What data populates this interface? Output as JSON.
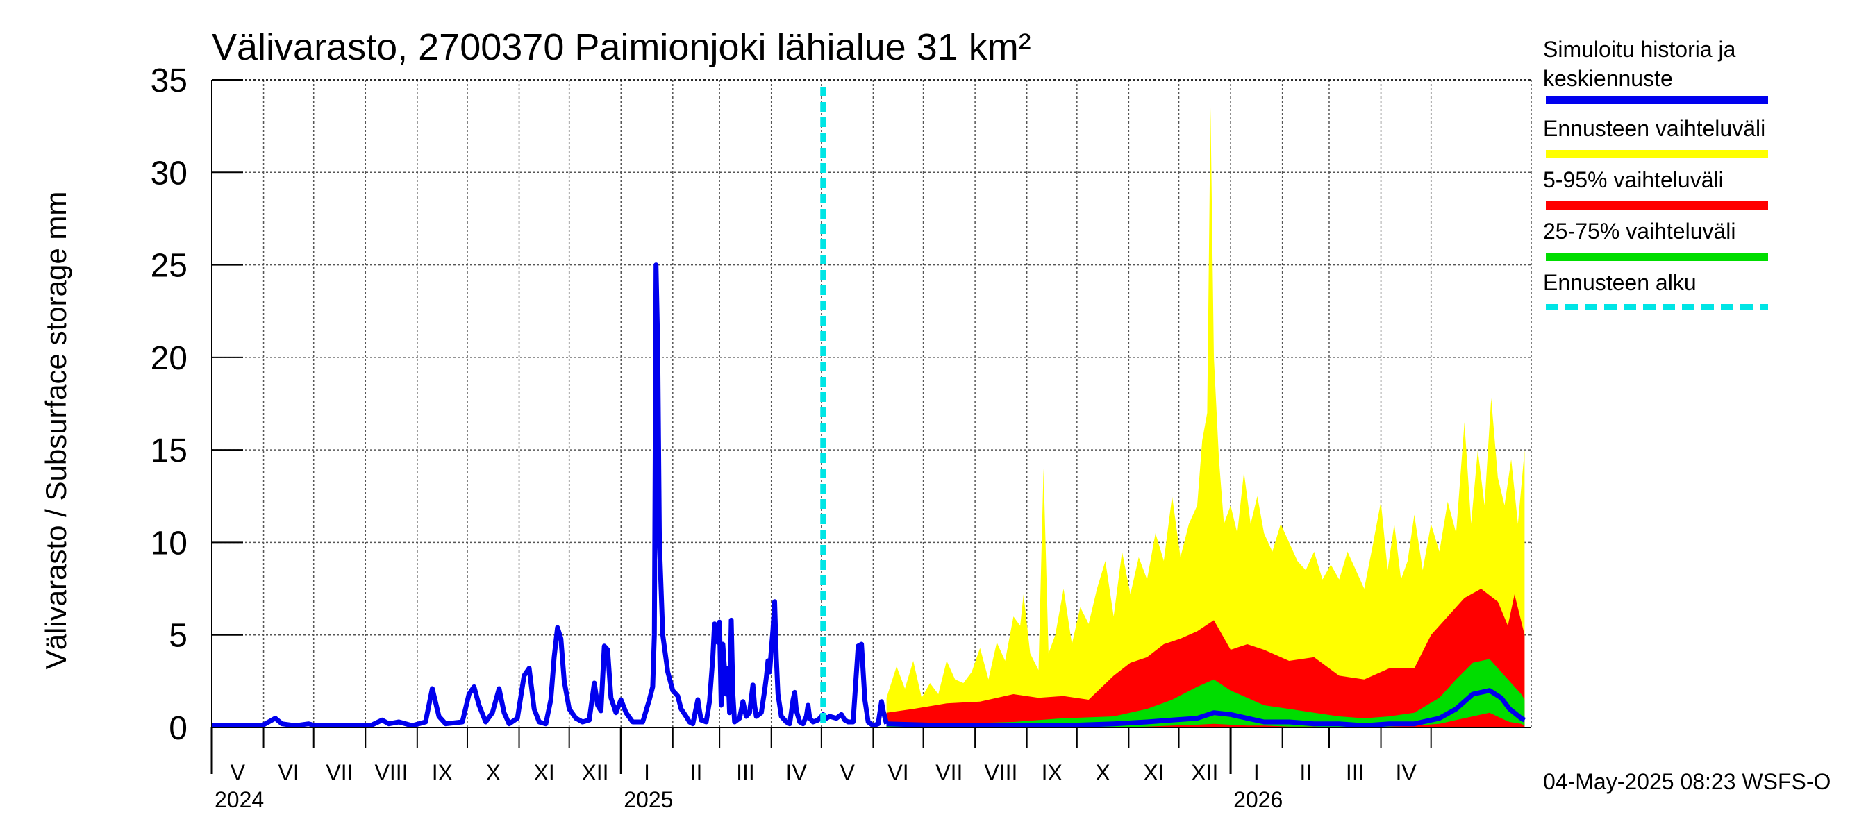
{
  "chart_data": {
    "type": "area",
    "title": "Välivarasto, 2700370 Paimionjoki lähialue 31 km²",
    "ylabel": "Välivarasto / Subsurface storage  mm",
    "xlabel": "",
    "ylim": [
      0,
      35
    ],
    "yticks": [
      "0",
      "5",
      "10",
      "15",
      "20",
      "25",
      "30",
      "35"
    ],
    "month_labels": [
      "V",
      "VI",
      "VII",
      "VIII",
      "IX",
      "X",
      "XI",
      "XII",
      "I",
      "II",
      "III",
      "IV",
      "V",
      "VI",
      "VII",
      "VIII",
      "IX",
      "X",
      "XI",
      "XII",
      "I",
      "II",
      "III",
      "IV"
    ],
    "year_labels": [
      "2024",
      "2025",
      "2026"
    ],
    "grid": true,
    "forecast_start_day": 366,
    "history_mm": [
      [
        0,
        0.1
      ],
      [
        30,
        0.1
      ],
      [
        38,
        0.5
      ],
      [
        42,
        0.2
      ],
      [
        50,
        0.1
      ],
      [
        58,
        0.2
      ],
      [
        62,
        0.1
      ],
      [
        95,
        0.1
      ],
      [
        102,
        0.4
      ],
      [
        106,
        0.2
      ],
      [
        112,
        0.3
      ],
      [
        120,
        0.1
      ],
      [
        128,
        0.3
      ],
      [
        132,
        2.1
      ],
      [
        136,
        0.6
      ],
      [
        140,
        0.2
      ],
      [
        150,
        0.3
      ],
      [
        154,
        1.8
      ],
      [
        157,
        2.2
      ],
      [
        160,
        1.2
      ],
      [
        164,
        0.3
      ],
      [
        168,
        0.8
      ],
      [
        172,
        2.1
      ],
      [
        175,
        0.8
      ],
      [
        178,
        0.2
      ],
      [
        183,
        0.5
      ],
      [
        187,
        2.8
      ],
      [
        190,
        3.2
      ],
      [
        193,
        1.0
      ],
      [
        196,
        0.3
      ],
      [
        200,
        0.2
      ],
      [
        203,
        1.5
      ],
      [
        205,
        3.8
      ],
      [
        207,
        5.4
      ],
      [
        209,
        4.8
      ],
      [
        211,
        2.5
      ],
      [
        214,
        1.0
      ],
      [
        218,
        0.5
      ],
      [
        222,
        0.3
      ],
      [
        226,
        0.4
      ],
      [
        229,
        2.4
      ],
      [
        231,
        1.2
      ],
      [
        233,
        0.9
      ],
      [
        235,
        4.4
      ],
      [
        237,
        4.2
      ],
      [
        239,
        1.6
      ],
      [
        242,
        0.8
      ],
      [
        245,
        1.5
      ],
      [
        248,
        0.8
      ],
      [
        252,
        0.3
      ],
      [
        258,
        0.3
      ],
      [
        262,
        1.5
      ],
      [
        264,
        2.2
      ],
      [
        265,
        5.0
      ],
      [
        266,
        25.0
      ],
      [
        267,
        20.5
      ],
      [
        268,
        10.0
      ],
      [
        270,
        5.0
      ],
      [
        273,
        3.0
      ],
      [
        276,
        2.0
      ],
      [
        279,
        1.7
      ],
      [
        281,
        1.0
      ],
      [
        284,
        0.6
      ],
      [
        286,
        0.3
      ],
      [
        288,
        0.2
      ],
      [
        291,
        1.5
      ],
      [
        292,
        0.9
      ],
      [
        293,
        0.4
      ],
      [
        296,
        0.3
      ],
      [
        298,
        1.4
      ],
      [
        300,
        3.8
      ],
      [
        301,
        5.6
      ],
      [
        303,
        4.6
      ],
      [
        304,
        5.7
      ],
      [
        305,
        1.2
      ],
      [
        306,
        4.5
      ],
      [
        308,
        1.8
      ],
      [
        309,
        3.2
      ],
      [
        310,
        0.8
      ],
      [
        311,
        5.8
      ],
      [
        312,
        1.8
      ],
      [
        313,
        0.3
      ],
      [
        316,
        0.5
      ],
      [
        318,
        1.4
      ],
      [
        320,
        0.6
      ],
      [
        322,
        0.8
      ],
      [
        324,
        2.3
      ],
      [
        325,
        1.2
      ],
      [
        326,
        0.6
      ],
      [
        329,
        0.8
      ],
      [
        331,
        2.0
      ],
      [
        332,
        2.7
      ],
      [
        333,
        3.6
      ],
      [
        334,
        3.0
      ],
      [
        335,
        4.2
      ],
      [
        336,
        5.3
      ],
      [
        337,
        6.8
      ],
      [
        338,
        3.8
      ],
      [
        339,
        1.8
      ],
      [
        341,
        0.6
      ],
      [
        344,
        0.3
      ],
      [
        346,
        0.2
      ],
      [
        348,
        1.5
      ],
      [
        349,
        1.9
      ],
      [
        350,
        0.9
      ],
      [
        352,
        0.3
      ],
      [
        354,
        0.2
      ],
      [
        356,
        0.6
      ],
      [
        357,
        1.2
      ],
      [
        358,
        0.5
      ],
      [
        360,
        0.3
      ],
      [
        363,
        0.4
      ],
      [
        366,
        0.7
      ],
      [
        368,
        0.5
      ],
      [
        370,
        0.6
      ],
      [
        374,
        0.5
      ],
      [
        377,
        0.7
      ],
      [
        379,
        0.4
      ],
      [
        381,
        0.3
      ],
      [
        384,
        0.3
      ],
      [
        387,
        4.4
      ],
      [
        389,
        4.5
      ],
      [
        391,
        1.5
      ],
      [
        393,
        0.3
      ],
      [
        396,
        0.1
      ],
      [
        399,
        0.2
      ],
      [
        400,
        0.8
      ],
      [
        401,
        1.4
      ],
      [
        402,
        0.9
      ],
      [
        404,
        0.2
      ]
    ],
    "median_mm": [
      [
        404,
        0.2
      ],
      [
        440,
        0.1
      ],
      [
        480,
        0.1
      ],
      [
        510,
        0.1
      ],
      [
        540,
        0.2
      ],
      [
        560,
        0.3
      ],
      [
        575,
        0.4
      ],
      [
        590,
        0.5
      ],
      [
        600,
        0.8
      ],
      [
        610,
        0.7
      ],
      [
        620,
        0.5
      ],
      [
        630,
        0.3
      ],
      [
        645,
        0.3
      ],
      [
        660,
        0.2
      ],
      [
        675,
        0.2
      ],
      [
        690,
        0.1
      ],
      [
        705,
        0.2
      ],
      [
        720,
        0.2
      ],
      [
        735,
        0.5
      ],
      [
        745,
        1.0
      ],
      [
        755,
        1.8
      ],
      [
        765,
        2.0
      ],
      [
        772,
        1.6
      ],
      [
        777,
        1.0
      ],
      [
        784,
        0.5
      ],
      [
        786,
        0.4
      ]
    ],
    "band_25_75_mm": [
      [
        404,
        0.0,
        0.3
      ],
      [
        440,
        0.0,
        0.2
      ],
      [
        480,
        0.0,
        0.3
      ],
      [
        510,
        0.0,
        0.5
      ],
      [
        540,
        0.0,
        0.6
      ],
      [
        560,
        0.05,
        1.0
      ],
      [
        575,
        0.1,
        1.5
      ],
      [
        590,
        0.15,
        2.2
      ],
      [
        600,
        0.2,
        2.6
      ],
      [
        610,
        0.15,
        2.0
      ],
      [
        620,
        0.1,
        1.6
      ],
      [
        630,
        0.1,
        1.2
      ],
      [
        645,
        0.05,
        1.0
      ],
      [
        660,
        0.05,
        0.8
      ],
      [
        675,
        0.0,
        0.6
      ],
      [
        690,
        0.0,
        0.5
      ],
      [
        705,
        0.05,
        0.6
      ],
      [
        720,
        0.1,
        0.8
      ],
      [
        735,
        0.2,
        1.6
      ],
      [
        745,
        0.4,
        2.6
      ],
      [
        755,
        0.6,
        3.5
      ],
      [
        765,
        0.8,
        3.7
      ],
      [
        772,
        0.5,
        3.0
      ],
      [
        777,
        0.3,
        2.5
      ],
      [
        784,
        0.2,
        1.8
      ],
      [
        786,
        0.1,
        1.5
      ]
    ],
    "band_5_95_mm": [
      [
        404,
        0.0,
        0.8
      ],
      [
        420,
        0.0,
        1.0
      ],
      [
        440,
        0.0,
        1.3
      ],
      [
        460,
        0.0,
        1.4
      ],
      [
        480,
        0.0,
        1.8
      ],
      [
        495,
        0.0,
        1.6
      ],
      [
        510,
        0.0,
        1.7
      ],
      [
        525,
        0.0,
        1.5
      ],
      [
        540,
        0.0,
        2.8
      ],
      [
        550,
        0.0,
        3.5
      ],
      [
        560,
        0.0,
        3.8
      ],
      [
        570,
        0.0,
        4.5
      ],
      [
        580,
        0.0,
        4.8
      ],
      [
        590,
        0.0,
        5.2
      ],
      [
        600,
        0.0,
        5.8
      ],
      [
        610,
        0.0,
        4.2
      ],
      [
        620,
        0.0,
        4.5
      ],
      [
        630,
        0.0,
        4.2
      ],
      [
        645,
        0.0,
        3.6
      ],
      [
        660,
        0.0,
        3.8
      ],
      [
        675,
        0.0,
        2.8
      ],
      [
        690,
        0.0,
        2.6
      ],
      [
        705,
        0.0,
        3.2
      ],
      [
        720,
        0.0,
        3.2
      ],
      [
        730,
        0.0,
        5.0
      ],
      [
        740,
        0.0,
        6.0
      ],
      [
        750,
        0.0,
        7.0
      ],
      [
        760,
        0.0,
        7.5
      ],
      [
        770,
        0.0,
        6.8
      ],
      [
        776,
        0.0,
        5.5
      ],
      [
        780,
        0.0,
        7.2
      ],
      [
        786,
        0.0,
        5.0
      ]
    ],
    "band_range_mm": [
      [
        404,
        0.0,
        1.6
      ],
      [
        410,
        0.0,
        3.3
      ],
      [
        415,
        0.0,
        2.1
      ],
      [
        420,
        0.0,
        3.6
      ],
      [
        425,
        0.0,
        1.6
      ],
      [
        430,
        0.0,
        2.4
      ],
      [
        435,
        0.0,
        1.8
      ],
      [
        440,
        0.0,
        3.6
      ],
      [
        445,
        0.0,
        2.6
      ],
      [
        450,
        0.0,
        2.4
      ],
      [
        455,
        0.0,
        3.0
      ],
      [
        460,
        0.0,
        4.3
      ],
      [
        465,
        0.0,
        2.6
      ],
      [
        470,
        0.0,
        4.6
      ],
      [
        475,
        0.0,
        3.6
      ],
      [
        480,
        0.0,
        6.0
      ],
      [
        484,
        0.0,
        5.5
      ],
      [
        486,
        0.0,
        7.2
      ],
      [
        490,
        0.0,
        4.0
      ],
      [
        495,
        0.0,
        3.1
      ],
      [
        498,
        0.0,
        14.0
      ],
      [
        501,
        0.0,
        4.0
      ],
      [
        505,
        0.0,
        5.0
      ],
      [
        510,
        0.0,
        7.5
      ],
      [
        515,
        0.0,
        4.5
      ],
      [
        520,
        0.0,
        6.5
      ],
      [
        525,
        0.0,
        5.6
      ],
      [
        530,
        0.0,
        7.5
      ],
      [
        535,
        0.0,
        9.0
      ],
      [
        540,
        0.0,
        6.0
      ],
      [
        545,
        0.0,
        9.5
      ],
      [
        550,
        0.0,
        7.2
      ],
      [
        555,
        0.0,
        9.2
      ],
      [
        560,
        0.0,
        8.0
      ],
      [
        565,
        0.0,
        10.5
      ],
      [
        570,
        0.0,
        9.0
      ],
      [
        575,
        0.0,
        12.5
      ],
      [
        580,
        0.0,
        9.2
      ],
      [
        585,
        0.0,
        11.0
      ],
      [
        590,
        0.0,
        12.0
      ],
      [
        593,
        0.0,
        15.5
      ],
      [
        596,
        0.0,
        17.0
      ],
      [
        598,
        0.0,
        33.5
      ],
      [
        600,
        0.0,
        20.0
      ],
      [
        603,
        0.0,
        14.5
      ],
      [
        606,
        0.0,
        11.0
      ],
      [
        610,
        0.0,
        12.0
      ],
      [
        614,
        0.0,
        10.5
      ],
      [
        618,
        0.0,
        13.8
      ],
      [
        622,
        0.0,
        11.0
      ],
      [
        626,
        0.0,
        12.5
      ],
      [
        630,
        0.0,
        10.5
      ],
      [
        635,
        0.0,
        9.5
      ],
      [
        640,
        0.0,
        11.0
      ],
      [
        645,
        0.0,
        10.0
      ],
      [
        650,
        0.0,
        9.0
      ],
      [
        655,
        0.0,
        8.5
      ],
      [
        660,
        0.0,
        9.5
      ],
      [
        665,
        0.0,
        8.0
      ],
      [
        670,
        0.0,
        8.8
      ],
      [
        675,
        0.0,
        8.0
      ],
      [
        680,
        0.0,
        9.5
      ],
      [
        685,
        0.0,
        8.5
      ],
      [
        690,
        0.0,
        7.5
      ],
      [
        695,
        0.0,
        9.8
      ],
      [
        700,
        0.0,
        12.2
      ],
      [
        704,
        0.0,
        8.5
      ],
      [
        708,
        0.0,
        11.0
      ],
      [
        712,
        0.0,
        8.0
      ],
      [
        716,
        0.0,
        9.0
      ],
      [
        720,
        0.0,
        11.5
      ],
      [
        725,
        0.0,
        8.5
      ],
      [
        730,
        0.0,
        11.0
      ],
      [
        735,
        0.0,
        9.5
      ],
      [
        740,
        0.0,
        12.2
      ],
      [
        745,
        0.0,
        10.5
      ],
      [
        750,
        0.0,
        16.5
      ],
      [
        754,
        0.0,
        11.0
      ],
      [
        758,
        0.0,
        15.0
      ],
      [
        762,
        0.0,
        12.0
      ],
      [
        766,
        0.0,
        17.8
      ],
      [
        770,
        0.0,
        13.5
      ],
      [
        774,
        0.0,
        12.0
      ],
      [
        778,
        0.0,
        14.5
      ],
      [
        782,
        0.0,
        11.0
      ],
      [
        786,
        0.0,
        15.0
      ]
    ],
    "colors": {
      "history": "#0000ee",
      "range": "#ffff00",
      "band_5_95": "#ff0000",
      "band_25_75": "#00dd00",
      "forecast_start": "#00e5e5"
    },
    "legend_position": "right"
  },
  "legend": {
    "history_label": "Simuloitu historia ja keskiennuste",
    "range_label": "Ennusteen vaihteluväli",
    "band_5_95_label": "5-95% vaihteluväli",
    "band_25_75_label": "25-75% vaihteluväli",
    "forecast_start_label": "Ennusteen alku"
  },
  "timestamp": "04-May-2025 08:23 WSFS-O"
}
